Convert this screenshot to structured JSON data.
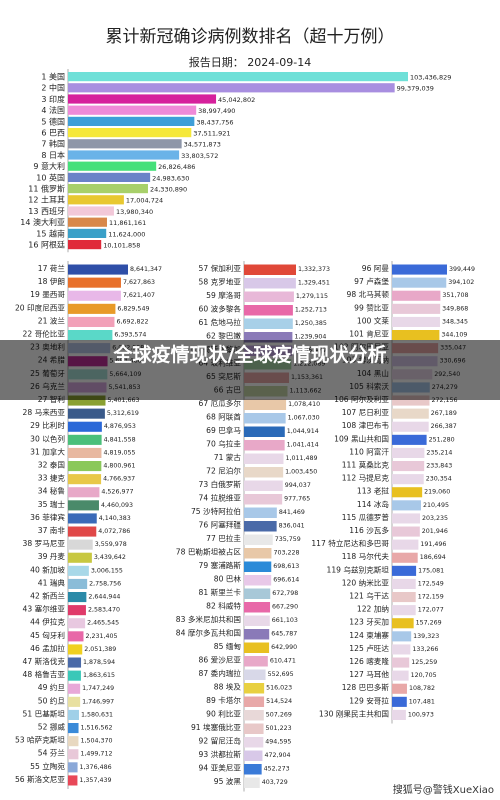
{
  "chart_data": {
    "type": "bar",
    "orientation": "horizontal",
    "title": "累计新冠确诊病例数排名（超十万例）",
    "subtitle": "报告日期：   2024-09-14",
    "top": [
      {
        "label": "1  美国",
        "value": "103,436,829",
        "v": 103436829,
        "color": "#6fe0d8"
      },
      {
        "label": "2  中国",
        "value": "99,379,039",
        "v": 99379039,
        "color": "#a88ee0"
      },
      {
        "label": "3  印度",
        "value": "45,042,802",
        "v": 45042802,
        "color": "#d6209c"
      },
      {
        "label": "4  法国",
        "value": "38,997,490",
        "v": 38997490,
        "color": "#ef8ad8"
      },
      {
        "label": "5  德国",
        "value": "38,437,756",
        "v": 38437756,
        "color": "#3e9fd8"
      },
      {
        "label": "6  巴西",
        "value": "37,511,921",
        "v": 37511921,
        "color": "#f5e83a"
      },
      {
        "label": "7  韩国",
        "value": "34,571,873",
        "v": 34571873,
        "color": "#8e96a8"
      },
      {
        "label": "8  日本",
        "value": "33,803,572",
        "v": 33803572,
        "color": "#6ab3e8"
      },
      {
        "label": "9  意大利",
        "value": "26,826,486",
        "v": 26826486,
        "color": "#45e07a"
      },
      {
        "label": "10  英国",
        "value": "24,983,630",
        "v": 24983630,
        "color": "#6a82c8"
      },
      {
        "label": "11  俄罗斯",
        "value": "24,330,890",
        "v": 24330890,
        "color": "#a8d06a"
      },
      {
        "label": "12  土耳其",
        "value": "17,004,724",
        "v": 17004724,
        "color": "#e8c830"
      },
      {
        "label": "13  西班牙",
        "value": "13,980,340",
        "v": 13980340,
        "color": "#f2c8d8"
      },
      {
        "label": "14  澳大利亚",
        "value": "11,861,161",
        "v": 11861161,
        "color": "#d8884a"
      },
      {
        "label": "15  越南",
        "value": "11,624,000",
        "v": 11624000,
        "color": "#3aa0c8"
      },
      {
        "label": "16  阿根廷",
        "value": "10,101,858",
        "v": 10101858,
        "color": "#e02a3a"
      }
    ],
    "col1": [
      {
        "label": "17  荷兰",
        "value": "8,641,347",
        "v": 8641347,
        "color": "#2f4fa8"
      },
      {
        "label": "18  伊朗",
        "value": "7,627,863",
        "v": 7627863,
        "color": "#e8702a"
      },
      {
        "label": "19  墨西哥",
        "value": "7,621,407",
        "v": 7621407,
        "color": "#e8b8e8"
      },
      {
        "label": "20  印度尼西亚",
        "value": "6,829,549",
        "v": 6829549,
        "color": "#e89a28"
      },
      {
        "label": "21  波兰",
        "value": "6,692,822",
        "v": 6692822,
        "color": "#f2a0b8"
      },
      {
        "label": "22  哥伦比亚",
        "value": "6,393,574",
        "v": 6393574,
        "color": "#5ad8c8"
      },
      {
        "label": "23  奥地利",
        "value": "6,082,508",
        "v": 6082508,
        "color": "#b8c8e8"
      },
      {
        "label": "24  希腊",
        "value": "5,693,466",
        "v": 5693466,
        "color": "#c0309a"
      },
      {
        "label": "25  葡萄牙",
        "value": "5,664,109",
        "v": 5664109,
        "color": "#a8e0d8"
      },
      {
        "label": "26  乌克兰",
        "value": "5,541,853",
        "v": 5541853,
        "color": "#d8a8e0"
      },
      {
        "label": "27  智利",
        "value": "5,401,663",
        "v": 5401663,
        "color": "#8aa030"
      },
      {
        "label": "28  马来西亚",
        "value": "5,312,619",
        "v": 5312619,
        "color": "#3a5a8a"
      },
      {
        "label": "29  比利时",
        "value": "4,876,953",
        "v": 4876953,
        "color": "#2a68d8"
      },
      {
        "label": "30  以色列",
        "value": "4,841,558",
        "v": 4841558,
        "color": "#4ac07a"
      },
      {
        "label": "31  加拿大",
        "value": "4,819,055",
        "v": 4819055,
        "color": "#e8b8a0"
      },
      {
        "label": "32  泰国",
        "value": "4,800,961",
        "v": 4800961,
        "color": "#8ac85a"
      },
      {
        "label": "33  捷克",
        "value": "4,766,937",
        "v": 4766937,
        "color": "#e8c848"
      },
      {
        "label": "34  秘鲁",
        "value": "4,526,977",
        "v": 4526977,
        "color": "#e8a8c8"
      },
      {
        "label": "35  瑞士",
        "value": "4,460,093",
        "v": 4460093,
        "color": "#4a8a6a"
      },
      {
        "label": "36  菲律宾",
        "value": "4,140,383",
        "v": 4140383,
        "color": "#3a6ab8"
      },
      {
        "label": "37  南非",
        "value": "4,072,786",
        "v": 4072786,
        "color": "#e04848"
      },
      {
        "label": "38  罗马尼亚",
        "value": "3,559,978",
        "v": 3559978,
        "color": "#d8d8d8"
      },
      {
        "label": "39  丹麦",
        "value": "3,439,642",
        "v": 3439642,
        "color": "#c8c840"
      },
      {
        "label": "40  新加坡",
        "value": "3,006,155",
        "v": 3006155,
        "color": "#a8d8e8"
      },
      {
        "label": "41  瑞典",
        "value": "2,758,756",
        "v": 2758756,
        "color": "#8abcd8"
      },
      {
        "label": "42  新西兰",
        "value": "2,644,944",
        "v": 2644944,
        "color": "#2a8aa8"
      },
      {
        "label": "43  塞尔维亚",
        "value": "2,583,470",
        "v": 2583470,
        "color": "#e03a6a"
      },
      {
        "label": "44  伊拉克",
        "value": "2,465,545",
        "v": 2465545,
        "color": "#e8c8e0"
      },
      {
        "label": "45  匈牙利",
        "value": "2,231,405",
        "v": 2231405,
        "color": "#e868a8"
      },
      {
        "label": "46  孟加拉",
        "value": "2,051,389",
        "v": 2051389,
        "color": "#f0d020"
      },
      {
        "label": "47  斯洛伐克",
        "value": "1,878,594",
        "v": 1878594,
        "color": "#4a6aa8"
      },
      {
        "label": "48  格鲁吉亚",
        "value": "1,863,615",
        "v": 1863615,
        "color": "#3ac8b8"
      },
      {
        "label": "49  约旦",
        "value": "1,747,249",
        "v": 1747249,
        "color": "#e8a8d8"
      },
      {
        "label": "50  约旦",
        "value": "1,746,997",
        "v": 1746997,
        "color": "#e8e0a0"
      },
      {
        "label": "51  巴基斯坦",
        "value": "1,580,631",
        "v": 1580631,
        "color": "#a0d0e8"
      },
      {
        "label": "52  挪威",
        "value": "1,516,562",
        "v": 1516562,
        "color": "#3a8ad8"
      },
      {
        "label": "53  哈萨克斯坦",
        "value": "1,504,370",
        "v": 1504370,
        "color": "#e8d8c0"
      },
      {
        "label": "54  芬兰",
        "value": "1,499,712",
        "v": 1499712,
        "color": "#e8c8d8"
      },
      {
        "label": "55  立陶宛",
        "value": "1,376,486",
        "v": 1376486,
        "color": "#8aa8d8"
      },
      {
        "label": "56  斯洛文尼亚",
        "value": "1,357,439",
        "v": 1357439,
        "color": "#e84858"
      }
    ],
    "col2": [
      {
        "label": "57  保加利亚",
        "value": "1,332,373",
        "v": 1332373,
        "color": "#e04838"
      },
      {
        "label": "58  克罗地亚",
        "value": "1,329,451",
        "v": 1329451,
        "color": "#d8c8e8"
      },
      {
        "label": "59  摩洛哥",
        "value": "1,279,115",
        "v": 1279115,
        "color": "#e8b8d8"
      },
      {
        "label": "60  波多黎各",
        "value": "1,252,713",
        "v": 1252713,
        "color": "#e868a8"
      },
      {
        "label": "61  危地马拉",
        "value": "1,250,385",
        "v": 1250385,
        "color": "#a8d0e8"
      },
      {
        "label": "62  黎巴嫩",
        "value": "1,239,904",
        "v": 1239904,
        "color": "#8a7ab8"
      },
      {
        "label": "63  哥斯达黎加",
        "value": "1,235,479",
        "v": 1235479,
        "color": "#c8a8e8"
      },
      {
        "label": "64  玻利维亚",
        "value": "1,212,089",
        "v": 1212089,
        "color": "#a8d8a8"
      },
      {
        "label": "65  突尼斯",
        "value": "1,153,361",
        "v": 1153361,
        "color": "#e8a8a8"
      },
      {
        "label": "66  古巴",
        "value": "1,113,662",
        "v": 1113662,
        "color": "#c8d8a8"
      },
      {
        "label": "67  厄瓜多尔",
        "value": "1,078,410",
        "v": 1078410,
        "color": "#e8c8a8"
      },
      {
        "label": "68  阿联酋",
        "value": "1,067,030",
        "v": 1067030,
        "color": "#a8c8e8"
      },
      {
        "label": "69  巴拿马",
        "value": "1,044,914",
        "v": 1044914,
        "color": "#2a6ab8"
      },
      {
        "label": "70  乌拉圭",
        "value": "1,041,414",
        "v": 1041414,
        "color": "#e8a8c8"
      },
      {
        "label": "71  蒙古",
        "value": "1,011,489",
        "v": 1011489,
        "color": "#e8d8e8"
      },
      {
        "label": "72  尼泊尔",
        "value": "1,003,450",
        "v": 1003450,
        "color": "#e8d8c8"
      },
      {
        "label": "73  白俄罗斯",
        "value": "994,037",
        "v": 994037,
        "color": "#e8d8e8"
      },
      {
        "label": "74  拉脱维亚",
        "value": "977,765",
        "v": 977765,
        "color": "#e8c8d8"
      },
      {
        "label": "75  沙特阿拉伯",
        "value": "841,469",
        "v": 841469,
        "color": "#a8c8e8"
      },
      {
        "label": "76  阿塞拜疆",
        "value": "836,041",
        "v": 836041,
        "color": "#4a6aa8"
      },
      {
        "label": "77  巴拉圭",
        "value": "735,759",
        "v": 735759,
        "color": "#e8e8e8"
      },
      {
        "label": "78  巴勒斯坦被占区",
        "value": "703,228",
        "v": 703228,
        "color": "#e8c8a8"
      },
      {
        "label": "79  塞浦路斯",
        "value": "698,613",
        "v": 698613,
        "color": "#2a8ad8"
      },
      {
        "label": "80  巴林",
        "value": "696,614",
        "v": 696614,
        "color": "#e8c8e8"
      },
      {
        "label": "81  斯里兰卡",
        "value": "672,798",
        "v": 672798,
        "color": "#a8c8d8"
      },
      {
        "label": "82  科威特",
        "value": "667,290",
        "v": 667290,
        "color": "#e868a8"
      },
      {
        "label": "83  多米尼加共和国",
        "value": "661,103",
        "v": 661103,
        "color": "#e8d8e8"
      },
      {
        "label": "84  摩尔多瓦共和国",
        "value": "645,787",
        "v": 645787,
        "color": "#8a7ab8"
      },
      {
        "label": "85  缅甸",
        "value": "642,990",
        "v": 642990,
        "color": "#e8c020"
      },
      {
        "label": "86  爱沙尼亚",
        "value": "610,471",
        "v": 610471,
        "color": "#e8a8c8"
      },
      {
        "label": "87  委内瑞拉",
        "value": "552,695",
        "v": 552695,
        "color": "#d8d8e8"
      },
      {
        "label": "88  埃及",
        "value": "516,023",
        "v": 516023,
        "color": "#e8d040"
      },
      {
        "label": "89  卡塔尔",
        "value": "514,524",
        "v": 514524,
        "color": "#e8a8a8"
      },
      {
        "label": "90  利比亚",
        "value": "507,269",
        "v": 507269,
        "color": "#e8d8d8"
      },
      {
        "label": "91  埃塞俄比亚",
        "value": "501,223",
        "v": 501223,
        "color": "#e8c8c8"
      },
      {
        "label": "92  留尼汪岛",
        "value": "494,595",
        "v": 494595,
        "color": "#e8d8e8"
      },
      {
        "label": "93  洪都拉斯",
        "value": "472,904",
        "v": 472904,
        "color": "#d8c8e8"
      },
      {
        "label": "94  亚美尼亚",
        "value": "452,273",
        "v": 452273,
        "color": "#3a7ad8"
      },
      {
        "label": "95  波黑",
        "value": "403,729",
        "v": 403729,
        "color": "#e8e8e8"
      }
    ],
    "col3": [
      {
        "label": "96  阿曼",
        "value": "399,449",
        "v": 399449,
        "color": "#3a6ad8"
      },
      {
        "label": "97  卢森堡",
        "value": "394,102",
        "v": 394102,
        "color": "#a8c8e8"
      },
      {
        "label": "98  北马其顿",
        "value": "351,708",
        "v": 351708,
        "color": "#e8a8c8"
      },
      {
        "label": "99  赞比亚",
        "value": "349,868",
        "v": 349868,
        "color": "#e8c8d8"
      },
      {
        "label": "100  文莱",
        "value": "348,345",
        "v": 348345,
        "color": "#e8d8e8"
      },
      {
        "label": "101  肯尼亚",
        "value": "344,109",
        "v": 344109,
        "color": "#e8c020"
      },
      {
        "label": "102  阿尔巴尼亚",
        "value": "335,047",
        "v": 335047,
        "color": "#e8a8a8"
      },
      {
        "label": "103  博茨瓦纳",
        "value": "330,696",
        "v": 330696,
        "color": "#d8c8e8"
      },
      {
        "label": "104  黑山",
        "value": "292,540",
        "v": 292540,
        "color": "#e8d8e8"
      },
      {
        "label": "105  科索沃",
        "value": "274,279",
        "v": 274279,
        "color": "#a8c8e8"
      },
      {
        "label": "106  阿尔及利亚",
        "value": "272,156",
        "v": 272156,
        "color": "#e8c8c8"
      },
      {
        "label": "107  尼日利亚",
        "value": "267,189",
        "v": 267189,
        "color": "#e8d8c8"
      },
      {
        "label": "108  津巴布韦",
        "value": "266,387",
        "v": 266387,
        "color": "#e8d8e8"
      },
      {
        "label": "109  黑山共和国",
        "value": "251,280",
        "v": 251280,
        "color": "#3a6ad8"
      },
      {
        "label": "110  阿富汗",
        "value": "235,214",
        "v": 235214,
        "color": "#e8d8e8"
      },
      {
        "label": "111  莫桑比克",
        "value": "233,843",
        "v": 233843,
        "color": "#e8c8d8"
      },
      {
        "label": "112  马提尼克",
        "value": "230,354",
        "v": 230354,
        "color": "#e8d8e8"
      },
      {
        "label": "113  老挝",
        "value": "219,060",
        "v": 219060,
        "color": "#e8c020"
      },
      {
        "label": "114  冰岛",
        "value": "210,495",
        "v": 210495,
        "color": "#a8c8e8"
      },
      {
        "label": "115  瓜德罗普",
        "value": "203,235",
        "v": 203235,
        "color": "#e8d8e8"
      },
      {
        "label": "116  沙瓦多",
        "value": "201,946",
        "v": 201946,
        "color": "#e8c8d8"
      },
      {
        "label": "117  特立尼达和多巴哥",
        "value": "191,496",
        "v": 191496,
        "color": "#e8d8e8"
      },
      {
        "label": "118  马尔代夫",
        "value": "186,694",
        "v": 186694,
        "color": "#e8a8a8"
      },
      {
        "label": "119  乌兹别克斯坦",
        "value": "175,081",
        "v": 175081,
        "color": "#3a6ad8"
      },
      {
        "label": "120  纳米比亚",
        "value": "172,549",
        "v": 172549,
        "color": "#e8d8e8"
      },
      {
        "label": "121  乌干达",
        "value": "172,159",
        "v": 172159,
        "color": "#e8c8c8"
      },
      {
        "label": "122  加纳",
        "value": "172,077",
        "v": 172077,
        "color": "#e8d8e8"
      },
      {
        "label": "123  牙买加",
        "value": "157,269",
        "v": 157269,
        "color": "#e8c020"
      },
      {
        "label": "124  柬埔寨",
        "value": "139,323",
        "v": 139323,
        "color": "#a8c8e8"
      },
      {
        "label": "125  卢旺达",
        "value": "133,266",
        "v": 133266,
        "color": "#e8d8e8"
      },
      {
        "label": "126  喀麦隆",
        "value": "125,259",
        "v": 125259,
        "color": "#e8c8d8"
      },
      {
        "label": "127  马耳他",
        "value": "120,705",
        "v": 120705,
        "color": "#e8d8e8"
      },
      {
        "label": "128  巴巴多斯",
        "value": "108,782",
        "v": 108782,
        "color": "#e8a8a8"
      },
      {
        "label": "129  安哥拉",
        "value": "107,481",
        "v": 107481,
        "color": "#3a6ad8"
      },
      {
        "label": "130  刚果民主共和国",
        "value": "100,973",
        "v": 100973,
        "color": "#e8d8e8"
      }
    ]
  },
  "banner": {
    "text": "全球疫情现状/全球疫情现状分析"
  },
  "watermark": "搜狐号@警钱XueXiao"
}
